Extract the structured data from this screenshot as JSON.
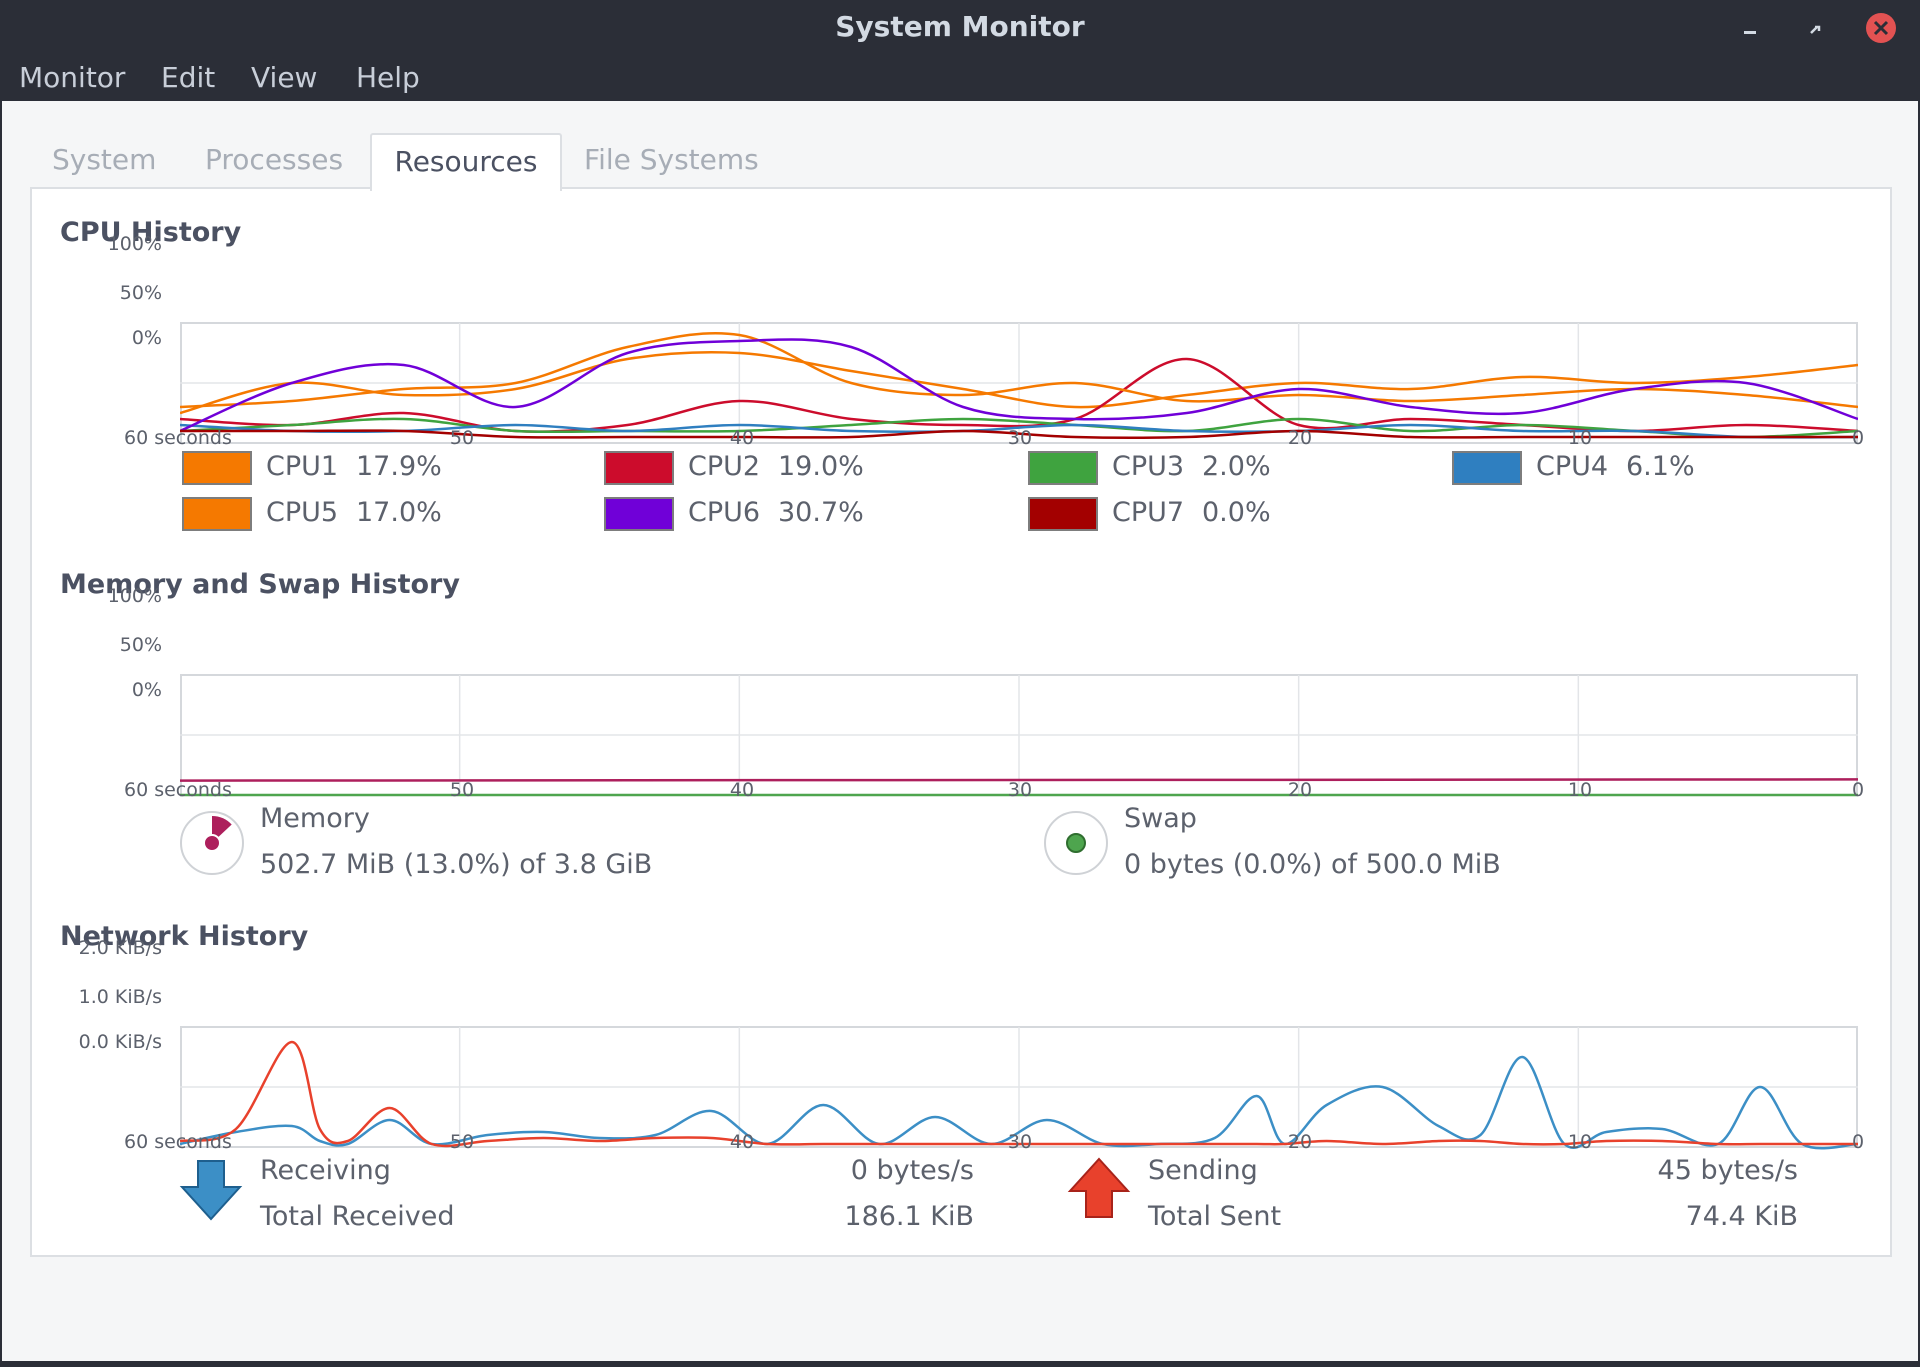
{
  "window": {
    "title": "System Monitor"
  },
  "menubar": {
    "items": [
      "Monitor",
      "Edit",
      "View",
      "Help"
    ]
  },
  "tabs": {
    "items": [
      "System",
      "Processes",
      "Resources",
      "File Systems"
    ],
    "active": "Resources"
  },
  "cpu": {
    "title": "CPU History",
    "y_ticks": [
      "100%",
      "50%",
      "0%"
    ],
    "x_ticks": [
      "60 seconds",
      "50",
      "40",
      "30",
      "20",
      "10",
      "0"
    ],
    "legend": [
      {
        "label": "CPU1",
        "value": "17.9%",
        "color": "#f57900"
      },
      {
        "label": "CPU2",
        "value": "19.0%",
        "color": "#cc0c2c"
      },
      {
        "label": "CPU3",
        "value": "2.0%",
        "color": "#3fa33f"
      },
      {
        "label": "CPU4",
        "value": "6.1%",
        "color": "#2f7fc0"
      },
      {
        "label": "CPU5",
        "value": "17.0%",
        "color": "#f57900"
      },
      {
        "label": "CPU6",
        "value": "30.7%",
        "color": "#7000d8"
      },
      {
        "label": "CPU7",
        "value": "0.0%",
        "color": "#a30000"
      }
    ]
  },
  "memory": {
    "title": "Memory and Swap History",
    "y_ticks": [
      "100%",
      "50%",
      "0%"
    ],
    "x_ticks": [
      "60 seconds",
      "50",
      "40",
      "30",
      "20",
      "10",
      "0"
    ],
    "memory_label": "Memory",
    "memory_value": "502.7 MiB (13.0%) of 3.8 GiB",
    "memory_percent": 13.0,
    "memory_color": "#ad1f5c",
    "swap_label": "Swap",
    "swap_value": "0 bytes (0.0%) of 500.0 MiB",
    "swap_percent": 0.0,
    "swap_color": "#4ea54e"
  },
  "network": {
    "title": "Network History",
    "y_ticks": [
      "2.0 KiB/s",
      "1.0 KiB/s",
      "0.0 KiB/s"
    ],
    "x_ticks": [
      "60 seconds",
      "50",
      "40",
      "30",
      "20",
      "10",
      "0"
    ],
    "receiving_label": "Receiving",
    "receiving_value": "0 bytes/s",
    "total_received_label": "Total Received",
    "total_received_value": "186.1 KiB",
    "sending_label": "Sending",
    "sending_value": "45 bytes/s",
    "total_sent_label": "Total Sent",
    "total_sent_value": "74.4 KiB",
    "receiving_color": "#3c8fc6",
    "sending_color": "#e8412c"
  },
  "chart_data": [
    {
      "type": "line",
      "title": "CPU History",
      "xlabel": "",
      "ylabel": "",
      "xlim": [
        60,
        0
      ],
      "ylim": [
        0,
        100
      ],
      "x": [
        60,
        56,
        52,
        48,
        44,
        40,
        36,
        32,
        28,
        24,
        20,
        16,
        12,
        8,
        4,
        0
      ],
      "series": [
        {
          "name": "CPU1",
          "values": [
            25,
            50,
            40,
            45,
            70,
            75,
            60,
            45,
            30,
            40,
            50,
            45,
            55,
            50,
            55,
            65
          ]
        },
        {
          "name": "CPU2",
          "values": [
            20,
            15,
            25,
            10,
            15,
            35,
            20,
            15,
            20,
            70,
            15,
            20,
            15,
            10,
            15,
            10
          ]
        },
        {
          "name": "CPU3",
          "values": [
            10,
            15,
            20,
            10,
            10,
            10,
            15,
            20,
            15,
            10,
            20,
            10,
            15,
            10,
            5,
            10
          ]
        },
        {
          "name": "CPU4",
          "values": [
            15,
            10,
            10,
            15,
            10,
            15,
            10,
            10,
            15,
            10,
            10,
            15,
            10,
            10,
            5,
            5
          ]
        },
        {
          "name": "CPU5",
          "values": [
            30,
            35,
            45,
            50,
            80,
            90,
            50,
            40,
            50,
            35,
            40,
            35,
            40,
            45,
            40,
            30
          ]
        },
        {
          "name": "CPU6",
          "values": [
            10,
            50,
            65,
            30,
            75,
            85,
            80,
            30,
            20,
            25,
            45,
            30,
            25,
            45,
            50,
            20
          ]
        },
        {
          "name": "CPU7",
          "values": [
            10,
            10,
            10,
            5,
            5,
            5,
            5,
            10,
            5,
            5,
            10,
            5,
            5,
            5,
            5,
            5
          ]
        }
      ]
    },
    {
      "type": "line",
      "title": "Memory and Swap History",
      "xlabel": "",
      "ylabel": "",
      "xlim": [
        60,
        0
      ],
      "ylim": [
        0,
        100
      ],
      "x": [
        60,
        0
      ],
      "series": [
        {
          "name": "Memory",
          "values": [
            12,
            13
          ]
        },
        {
          "name": "Swap",
          "values": [
            0,
            0
          ]
        }
      ]
    },
    {
      "type": "line",
      "title": "Network History",
      "xlabel": "",
      "ylabel": "KiB/s",
      "xlim": [
        60,
        0
      ],
      "ylim": [
        0,
        2
      ],
      "x": [
        60,
        58,
        56,
        55,
        54,
        52.5,
        51,
        49,
        47,
        45,
        43,
        41,
        39,
        37,
        35,
        33,
        31,
        29,
        27,
        25,
        23,
        21.5,
        20.5,
        19,
        17,
        15,
        13.5,
        12,
        10.5,
        9,
        7,
        5,
        3.5,
        2,
        0
      ],
      "series": [
        {
          "name": "Receiving",
          "values": [
            0.05,
            0.25,
            0.35,
            0.1,
            0.05,
            0.45,
            0.05,
            0.2,
            0.25,
            0.15,
            0.2,
            0.6,
            0.05,
            0.7,
            0.05,
            0.5,
            0.05,
            0.45,
            0.05,
            0.05,
            0.15,
            0.85,
            0.05,
            0.7,
            1.0,
            0.35,
            0.2,
            1.5,
            0.05,
            0.25,
            0.3,
            0.05,
            1.0,
            0.05,
            0.05
          ]
        },
        {
          "name": "Sending",
          "values": [
            0.1,
            0.3,
            1.75,
            0.3,
            0.1,
            0.65,
            0.05,
            0.1,
            0.15,
            0.1,
            0.15,
            0.15,
            0.05,
            0.05,
            0.05,
            0.05,
            0.05,
            0.05,
            0.05,
            0.05,
            0.05,
            0.05,
            0.05,
            0.1,
            0.05,
            0.1,
            0.1,
            0.05,
            0.05,
            0.1,
            0.1,
            0.05,
            0.05,
            0.05,
            0.05
          ]
        }
      ]
    }
  ]
}
